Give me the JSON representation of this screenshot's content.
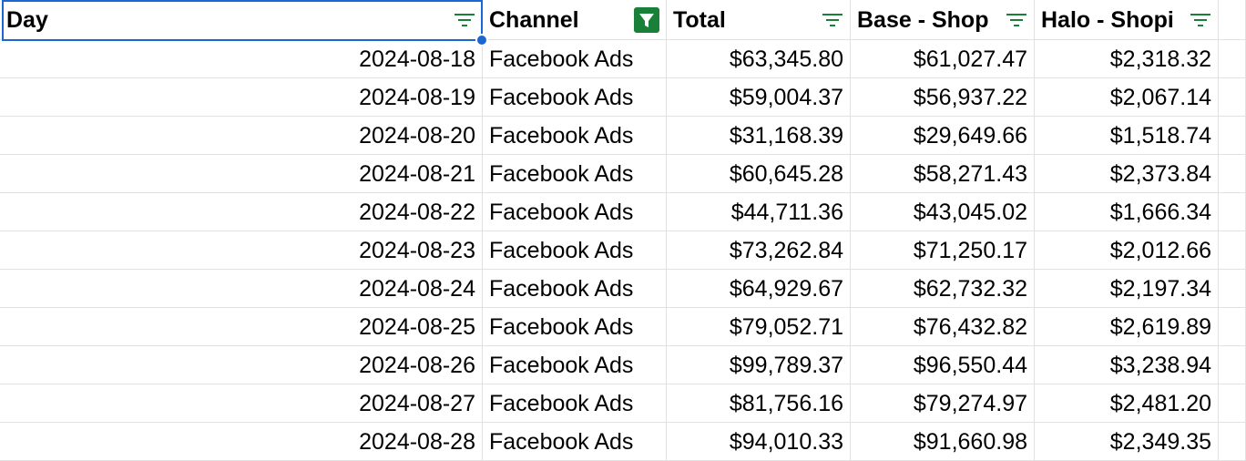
{
  "header": {
    "columns": [
      "Day",
      "Channel",
      "Total",
      "Base - Shop",
      "Halo - Shopi"
    ]
  },
  "table": {
    "rows": [
      [
        "2024-08-18",
        "Facebook Ads",
        "$63,345.80",
        "$61,027.47",
        "$2,318.32"
      ],
      [
        "2024-08-19",
        "Facebook Ads",
        "$59,004.37",
        "$56,937.22",
        "$2,067.14"
      ],
      [
        "2024-08-20",
        "Facebook Ads",
        "$31,168.39",
        "$29,649.66",
        "$1,518.74"
      ],
      [
        "2024-08-21",
        "Facebook Ads",
        "$60,645.28",
        "$58,271.43",
        "$2,373.84"
      ],
      [
        "2024-08-22",
        "Facebook Ads",
        "$44,711.36",
        "$43,045.02",
        "$1,666.34"
      ],
      [
        "2024-08-23",
        "Facebook Ads",
        "$73,262.84",
        "$71,250.17",
        "$2,012.66"
      ],
      [
        "2024-08-24",
        "Facebook Ads",
        "$64,929.67",
        "$62,732.32",
        "$2,197.34"
      ],
      [
        "2024-08-25",
        "Facebook Ads",
        "$79,052.71",
        "$76,432.82",
        "$2,619.89"
      ],
      [
        "2024-08-26",
        "Facebook Ads",
        "$99,789.37",
        "$96,550.44",
        "$3,238.94"
      ],
      [
        "2024-08-27",
        "Facebook Ads",
        "$81,756.16",
        "$79,274.97",
        "$2,481.20"
      ],
      [
        "2024-08-28",
        "Facebook Ads",
        "$94,010.33",
        "$91,660.98",
        "$2,349.35"
      ]
    ]
  }
}
